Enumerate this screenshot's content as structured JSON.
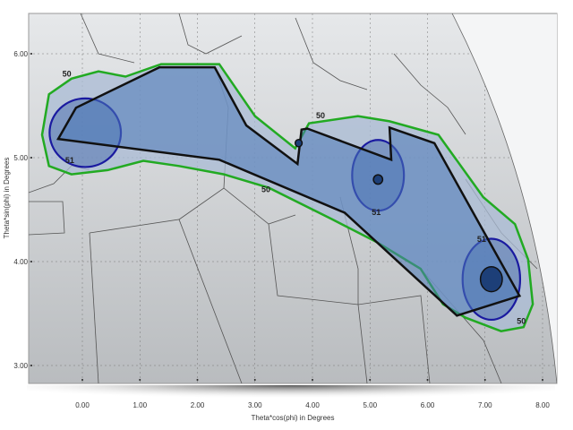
{
  "chart_data": {
    "type": "map-contour",
    "xlabel": "Theta*cos(phi) in Degrees",
    "ylabel": "Theta*sin(phi) in Degrees",
    "xlim": [
      -0.4,
      8.1
    ],
    "ylim": [
      2.85,
      6.4
    ],
    "x_ticks": [
      "0.00",
      "1.00",
      "2.00",
      "3.00",
      "4.00",
      "5.00",
      "6.00",
      "7.00",
      "8.00"
    ],
    "x_tick_values": [
      0,
      1,
      2,
      3,
      4,
      5,
      6,
      7,
      8
    ],
    "y_ticks": [
      "6.00",
      "5.00",
      "4.00",
      "3.00"
    ],
    "y_tick_values": [
      6,
      5,
      4,
      3
    ],
    "grid": true,
    "colors": {
      "contour_50": "#22aa22",
      "contour_51": "#1a1aa0",
      "coverage_fill": "#4a78b8",
      "polygon": "#111111"
    },
    "coverage_polygon": [
      [
        -0.42,
        5.18
      ],
      [
        -0.11,
        5.48
      ],
      [
        1.34,
        5.87
      ],
      [
        2.3,
        5.87
      ],
      [
        2.85,
        5.31
      ],
      [
        3.74,
        4.94
      ],
      [
        3.81,
        5.27
      ],
      [
        3.91,
        5.28
      ],
      [
        5.37,
        4.98
      ],
      [
        5.34,
        5.29
      ],
      [
        6.12,
        5.14
      ],
      [
        7.6,
        3.67
      ],
      [
        6.51,
        3.48
      ],
      [
        4.56,
        4.47
      ],
      [
        2.38,
        4.98
      ]
    ],
    "contour_50": {
      "label": "50",
      "points": [
        [
          -0.7,
          5.22
        ],
        [
          -0.58,
          5.61
        ],
        [
          -0.19,
          5.76
        ],
        [
          0.28,
          5.83
        ],
        [
          0.75,
          5.78
        ],
        [
          1.37,
          5.9
        ],
        [
          2.38,
          5.9
        ],
        [
          3.0,
          5.4
        ],
        [
          3.7,
          5.09
        ],
        [
          3.94,
          5.33
        ],
        [
          4.79,
          5.4
        ],
        [
          5.34,
          5.35
        ],
        [
          6.19,
          5.22
        ],
        [
          6.97,
          4.62
        ],
        [
          7.52,
          4.36
        ],
        [
          7.75,
          4.02
        ],
        [
          7.83,
          3.59
        ],
        [
          7.67,
          3.37
        ],
        [
          7.28,
          3.33
        ],
        [
          6.66,
          3.46
        ],
        [
          6.27,
          3.59
        ],
        [
          5.88,
          3.93
        ],
        [
          5.11,
          4.19
        ],
        [
          4.33,
          4.41
        ],
        [
          3.24,
          4.71
        ],
        [
          2.46,
          4.84
        ],
        [
          1.68,
          4.92
        ],
        [
          1.06,
          4.97
        ],
        [
          0.44,
          4.88
        ],
        [
          -0.19,
          4.84
        ],
        [
          -0.58,
          4.92
        ]
      ]
    },
    "contour_51": {
      "label": "51",
      "ellipses": [
        {
          "cx": 0.05,
          "cy": 5.24,
          "rx": 0.62,
          "ry": 0.33
        },
        {
          "cx": 5.14,
          "cy": 4.83,
          "rx": 0.45,
          "ry": 0.34
        },
        {
          "cx": 7.11,
          "cy": 3.83,
          "rx": 0.5,
          "ry": 0.39
        }
      ]
    },
    "peaks": [
      {
        "x": 3.76,
        "y": 5.14,
        "rx": 0.06,
        "ry": 0.035
      },
      {
        "x": 5.14,
        "y": 4.79,
        "rx": 0.08,
        "ry": 0.045
      },
      {
        "x": 7.11,
        "y": 3.83,
        "rx": 0.19,
        "ry": 0.12
      }
    ],
    "contour_labels": [
      {
        "text": "50",
        "x": -0.27,
        "y": 5.78
      },
      {
        "text": "50",
        "x": 3.19,
        "y": 4.67
      },
      {
        "text": "50",
        "x": 4.14,
        "y": 5.38
      },
      {
        "text": "50",
        "x": 7.63,
        "y": 3.4
      },
      {
        "text": "51",
        "x": -0.22,
        "y": 4.95
      },
      {
        "text": "51",
        "x": 5.11,
        "y": 4.45
      },
      {
        "text": "51",
        "x": 6.94,
        "y": 4.19
      }
    ]
  }
}
